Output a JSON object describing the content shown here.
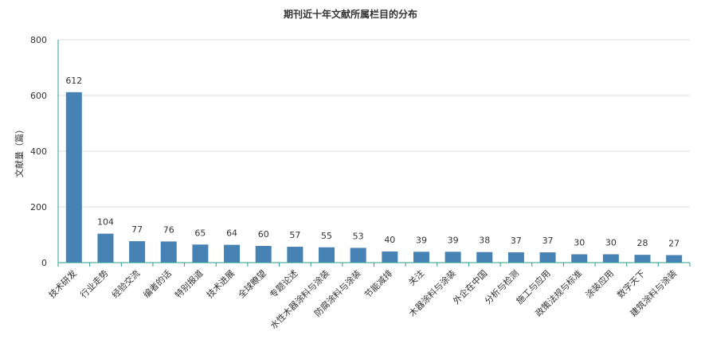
{
  "chart_data": {
    "type": "bar",
    "title": "期刊近十年文献所属栏目的分布",
    "xlabel": "",
    "ylabel": "文献量（篇）",
    "ylim": [
      0,
      800
    ],
    "yticks": [
      0,
      200,
      400,
      600,
      800
    ],
    "grid": true,
    "bar_color": "#4682b4",
    "axis_color": "#2a9d8f",
    "categories": [
      "技术研发",
      "行业走势",
      "经验交流",
      "编者的话",
      "特别报道",
      "技术进展",
      "全球瞭望",
      "专题论述",
      "水性木器涂料与涂装",
      "防腐涂料与涂装",
      "节能减排",
      "关注",
      "木器涂料与涂装",
      "外企在中国",
      "分析与检测",
      "施工与应用",
      "政策法规与标准",
      "涂装应用",
      "数字天下",
      "建筑涂料与涂装"
    ],
    "values": [
      612,
      104,
      77,
      76,
      65,
      64,
      60,
      57,
      55,
      53,
      40,
      39,
      39,
      38,
      37,
      37,
      30,
      30,
      28,
      27
    ]
  }
}
